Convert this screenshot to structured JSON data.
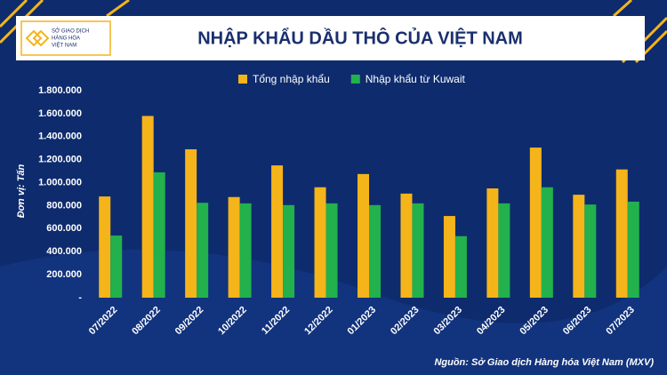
{
  "logo": {
    "lines": [
      "SỞ GIAO DỊCH",
      "HÀNG HÓA",
      "VIỆT NAM"
    ]
  },
  "chart_data": {
    "type": "bar",
    "title": "NHẬP KHẨU DẦU THÔ CỦA VIỆT NAM",
    "y_label": "Đơn vị: Tấn",
    "source": "Nguồn: Sở Giao dịch Hàng hóa Việt Nam (MXV)",
    "categories": [
      "07/2022",
      "08/2022",
      "09/2022",
      "10/2022",
      "11/2022",
      "12/2022",
      "01/2023",
      "02/2023",
      "03/2023",
      "04/2023",
      "05/2023",
      "06/2023",
      "07/2023"
    ],
    "series": [
      {
        "name": "Tổng nhập khẩu",
        "color": "#f5b41a",
        "values": [
          880000,
          1580000,
          1290000,
          875000,
          1150000,
          960000,
          1075000,
          905000,
          710000,
          950000,
          1305000,
          895000,
          1115000
        ]
      },
      {
        "name": "Nhập khẩu từ Kuwait",
        "color": "#22b14c",
        "values": [
          540000,
          1090000,
          825000,
          820000,
          805000,
          820000,
          805000,
          820000,
          535000,
          820000,
          960000,
          810000,
          835000
        ]
      }
    ],
    "ylim": [
      0,
      1800000
    ],
    "yticks": [
      {
        "value": 0,
        "label": "-"
      },
      {
        "value": 200000,
        "label": "200.000"
      },
      {
        "value": 400000,
        "label": "400.000"
      },
      {
        "value": 600000,
        "label": "600.000"
      },
      {
        "value": 800000,
        "label": "800.000"
      },
      {
        "value": 1000000,
        "label": "1.000.000"
      },
      {
        "value": 1200000,
        "label": "1.200.000"
      },
      {
        "value": 1400000,
        "label": "1.400.000"
      },
      {
        "value": 1600000,
        "label": "1.600.000"
      },
      {
        "value": 1800000,
        "label": "1.800.000"
      }
    ],
    "grid": false
  }
}
